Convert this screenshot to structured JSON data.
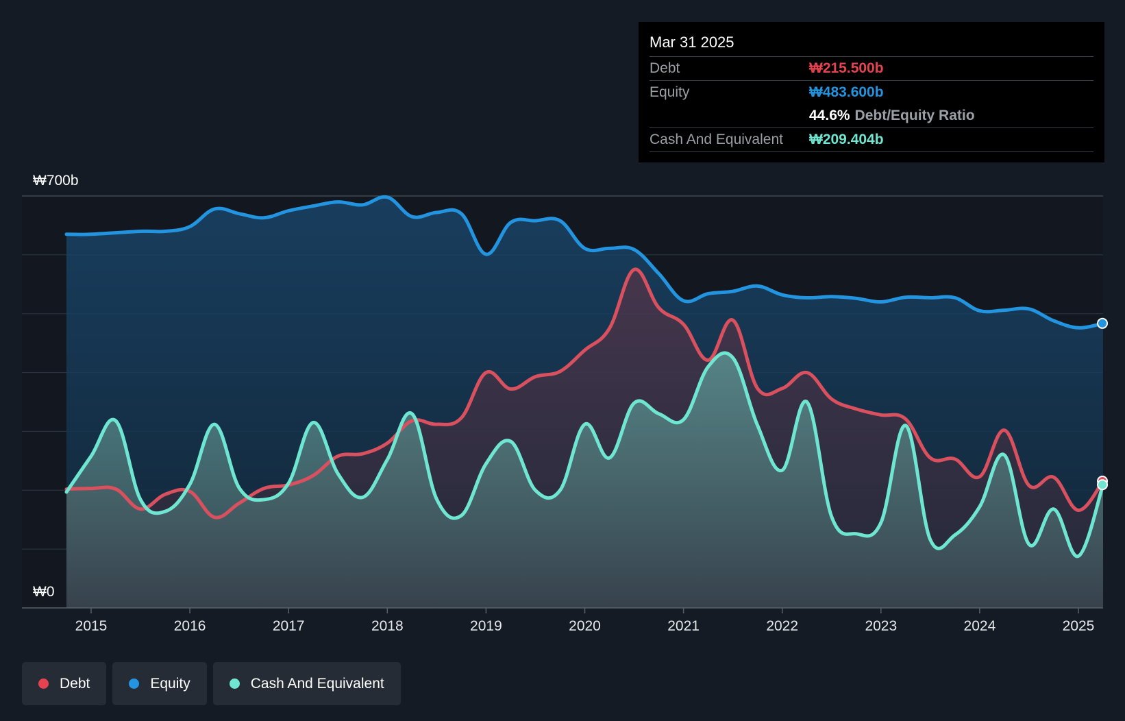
{
  "tooltip": {
    "date": "Mar 31 2025",
    "debt_label": "Debt",
    "debt_value": "₩215.500b",
    "equity_label": "Equity",
    "equity_value": "₩483.600b",
    "ratio_value": "44.6%",
    "ratio_label": "Debt/Equity Ratio",
    "cash_label": "Cash And Equivalent",
    "cash_value": "₩209.404b"
  },
  "legend": [
    {
      "label": "Debt",
      "color": "#e5434f"
    },
    {
      "label": "Equity",
      "color": "#2394df"
    },
    {
      "label": "Cash And Equivalent",
      "color": "#6ee6d1"
    }
  ],
  "colors": {
    "debt": "#d9505f",
    "equity": "#2394df",
    "cash": "#6ee6d1",
    "debt_text": "#e5434f",
    "equity_text": "#2394df",
    "cash_text": "#6ee6d1"
  },
  "chart_data": {
    "type": "area",
    "title": "",
    "xlabel": "",
    "ylabel": "",
    "y_tick_labels": [
      "₩0",
      "₩700b"
    ],
    "ylim": [
      0,
      700
    ],
    "xlim": [
      2014.75,
      2025.25
    ],
    "x_ticks": [
      2015,
      2016,
      2017,
      2018,
      2019,
      2020,
      2021,
      2022,
      2023,
      2024,
      2025
    ],
    "x_tick_labels": [
      "2015",
      "2016",
      "2017",
      "2018",
      "2019",
      "2020",
      "2021",
      "2022",
      "2023",
      "2024",
      "2025"
    ],
    "gridlines": [
      100,
      200,
      300,
      400,
      500,
      600,
      700
    ],
    "series": [
      {
        "name": "Equity",
        "x": [
          2014.75,
          2015.0,
          2015.5,
          2015.75,
          2016.0,
          2016.25,
          2016.5,
          2016.75,
          2017.0,
          2017.25,
          2017.5,
          2017.75,
          2018.0,
          2018.25,
          2018.5,
          2018.75,
          2019.0,
          2019.25,
          2019.5,
          2019.75,
          2020.0,
          2020.25,
          2020.5,
          2020.75,
          2021.0,
          2021.25,
          2021.5,
          2021.75,
          2022.0,
          2022.25,
          2022.5,
          2022.75,
          2023.0,
          2023.25,
          2023.5,
          2023.75,
          2024.0,
          2024.25,
          2024.5,
          2024.75,
          2025.0,
          2025.25
        ],
        "values": [
          635,
          635,
          640,
          640,
          648,
          678,
          670,
          663,
          675,
          683,
          690,
          685,
          698,
          665,
          672,
          670,
          601,
          655,
          658,
          658,
          611,
          611,
          609,
          568,
          522,
          534,
          538,
          547,
          532,
          527,
          529,
          526,
          520,
          528,
          527,
          527,
          505,
          506,
          508,
          488,
          476,
          483.6
        ]
      },
      {
        "name": "Debt",
        "x": [
          2014.75,
          2015.0,
          2015.25,
          2015.5,
          2015.75,
          2016.0,
          2016.25,
          2016.5,
          2016.75,
          2017.0,
          2017.25,
          2017.5,
          2017.75,
          2018.0,
          2018.25,
          2018.5,
          2018.75,
          2019.0,
          2019.25,
          2019.5,
          2019.75,
          2020.0,
          2020.25,
          2020.5,
          2020.75,
          2021.0,
          2021.25,
          2021.5,
          2021.75,
          2022.0,
          2022.25,
          2022.5,
          2022.75,
          2023.0,
          2023.25,
          2023.5,
          2023.75,
          2024.0,
          2024.25,
          2024.5,
          2024.75,
          2025.0,
          2025.25
        ],
        "values": [
          202,
          203,
          202,
          168,
          193,
          198,
          154,
          178,
          203,
          209,
          225,
          258,
          262,
          280,
          318,
          312,
          323,
          400,
          372,
          393,
          402,
          438,
          475,
          575,
          510,
          482,
          421,
          489,
          373,
          373,
          400,
          355,
          338,
          328,
          321,
          255,
          253,
          223,
          302,
          208,
          222,
          166,
          215.5
        ]
      },
      {
        "name": "Cash And Equivalent",
        "x": [
          2014.75,
          2015.0,
          2015.25,
          2015.5,
          2015.75,
          2016.0,
          2016.25,
          2016.5,
          2016.75,
          2017.0,
          2017.25,
          2017.5,
          2017.75,
          2018.0,
          2018.25,
          2018.5,
          2018.75,
          2019.0,
          2019.25,
          2019.5,
          2019.75,
          2020.0,
          2020.25,
          2020.5,
          2020.75,
          2021.0,
          2021.25,
          2021.5,
          2021.75,
          2022.0,
          2022.25,
          2022.5,
          2022.75,
          2023.0,
          2023.25,
          2023.5,
          2023.75,
          2024.0,
          2024.25,
          2024.5,
          2024.75,
          2025.0,
          2025.25
        ],
        "values": [
          197,
          258,
          318,
          184,
          164,
          210,
          312,
          204,
          184,
          212,
          315,
          228,
          188,
          252,
          330,
          185,
          157,
          245,
          283,
          200,
          200,
          312,
          255,
          348,
          330,
          320,
          410,
          425,
          310,
          234,
          350,
          155,
          126,
          145,
          310,
          116,
          124,
          172,
          260,
          108,
          168,
          88,
          209.404
        ]
      }
    ]
  }
}
